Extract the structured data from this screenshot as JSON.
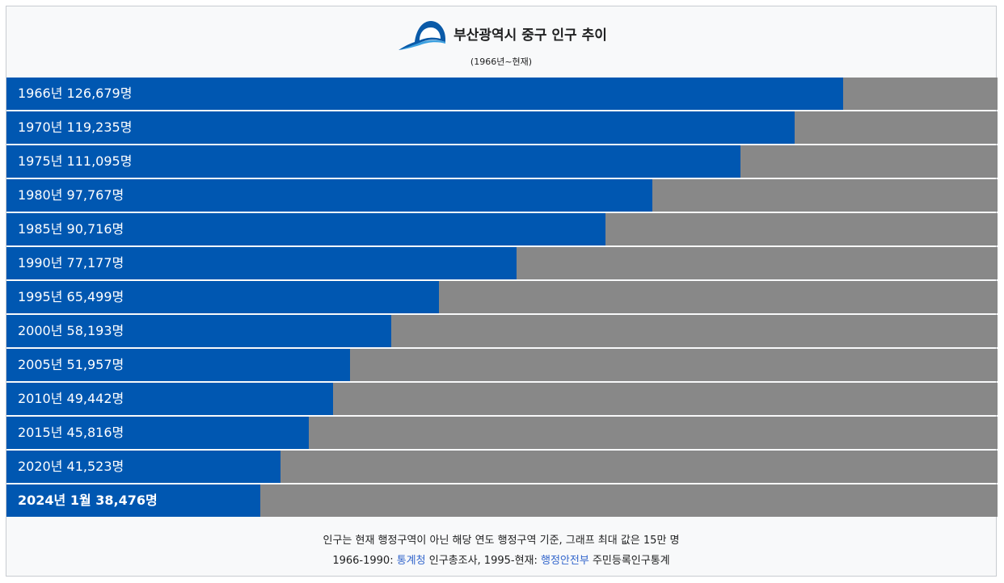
{
  "header": {
    "title": "부산광역시 중구 인구 추이",
    "subtitle": "(1966년~현재)"
  },
  "colors": {
    "bar": "#0057b1",
    "track": "#888888",
    "link": "#3366cc"
  },
  "chart_data": {
    "type": "bar",
    "orientation": "horizontal",
    "title": "부산광역시 중구 인구 추이",
    "subtitle": "(1966년~현재)",
    "xlim": [
      0,
      150000
    ],
    "categories": [
      "1966년",
      "1970년",
      "1975년",
      "1980년",
      "1985년",
      "1990년",
      "1995년",
      "2000년",
      "2005년",
      "2010년",
      "2015년",
      "2020년",
      "2024년 1월"
    ],
    "values": [
      126679,
      119235,
      111095,
      97767,
      90716,
      77177,
      65499,
      58193,
      51957,
      49442,
      45816,
      41523,
      38476
    ],
    "labels": [
      "1966년 126,679명",
      "1970년 119,235명",
      "1975년 111,095명",
      "1980년 97,767명",
      "1985년 90,716명",
      "1990년 77,177명",
      "1995년 65,499명",
      "2000년 58,193명",
      "2005년 51,957명",
      "2010년 49,442명",
      "2015년 45,816명",
      "2020년 41,523명",
      "2024년 1월 38,476명"
    ],
    "bold_last": true
  },
  "footer": {
    "note": "인구는 현재 행정구역이 아닌 해당 연도 행정구역 기준, 그래프 최대 값은 15만 명",
    "source_prefix": "1966-1990: ",
    "source_link1": "통계청",
    "source_mid": " 인구총조사, 1995-현재: ",
    "source_link2": "행정안전부",
    "source_suffix": " 주민등록인구통계"
  }
}
